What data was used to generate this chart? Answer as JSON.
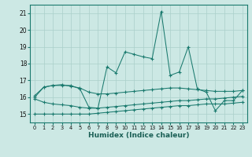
{
  "xlabel": "Humidex (Indice chaleur)",
  "bg_color": "#cce8e4",
  "grid_color": "#aacfca",
  "line_color": "#1a7a6e",
  "xlim": [
    -0.5,
    23.5
  ],
  "ylim": [
    14.5,
    21.5
  ],
  "xticks": [
    0,
    1,
    2,
    3,
    4,
    5,
    6,
    7,
    8,
    9,
    10,
    11,
    12,
    13,
    14,
    15,
    16,
    17,
    18,
    19,
    20,
    21,
    22,
    23
  ],
  "yticks": [
    15,
    16,
    17,
    18,
    19,
    20,
    21
  ],
  "line_main_x": [
    0,
    1,
    2,
    3,
    4,
    5,
    6,
    7,
    8,
    9,
    10,
    11,
    12,
    13,
    14,
    15,
    16,
    17,
    18,
    19,
    20,
    21,
    22,
    23
  ],
  "line_main_y": [
    16.0,
    16.6,
    16.7,
    16.7,
    16.7,
    16.5,
    15.4,
    15.35,
    17.8,
    17.45,
    18.7,
    18.55,
    18.4,
    18.3,
    21.1,
    17.3,
    17.5,
    19.0,
    16.5,
    16.3,
    15.2,
    15.8,
    15.8,
    16.4
  ],
  "line_flat1_x": [
    0,
    1,
    2,
    3,
    4,
    5,
    6,
    7,
    8,
    9,
    10,
    11,
    12,
    13,
    14,
    15,
    16,
    17,
    18,
    19,
    20,
    21,
    22,
    23
  ],
  "line_flat1_y": [
    15.9,
    15.7,
    15.6,
    15.55,
    15.5,
    15.4,
    15.35,
    15.35,
    15.4,
    15.45,
    15.5,
    15.55,
    15.6,
    15.65,
    15.7,
    15.75,
    15.8,
    15.8,
    15.85,
    15.9,
    15.9,
    15.95,
    16.0,
    16.05
  ],
  "line_flat2_x": [
    0,
    1,
    2,
    3,
    4,
    5,
    6,
    7,
    8,
    9,
    10,
    11,
    12,
    13,
    14,
    15,
    16,
    17,
    18,
    19,
    20,
    21,
    22,
    23
  ],
  "line_flat2_y": [
    15.0,
    15.0,
    15.0,
    15.0,
    15.0,
    15.0,
    15.0,
    15.05,
    15.1,
    15.15,
    15.2,
    15.25,
    15.3,
    15.35,
    15.4,
    15.45,
    15.5,
    15.5,
    15.55,
    15.6,
    15.6,
    15.6,
    15.65,
    15.7
  ],
  "line_upper_x": [
    0,
    1,
    2,
    3,
    4,
    5,
    6,
    7,
    8,
    9,
    10,
    11,
    12,
    13,
    14,
    15,
    16,
    17,
    18,
    19,
    20,
    21,
    22,
    23
  ],
  "line_upper_y": [
    16.1,
    16.6,
    16.7,
    16.75,
    16.65,
    16.55,
    16.3,
    16.2,
    16.2,
    16.25,
    16.3,
    16.35,
    16.4,
    16.45,
    16.5,
    16.55,
    16.55,
    16.5,
    16.45,
    16.4,
    16.35,
    16.35,
    16.35,
    16.4
  ],
  "marker_size": 3.0
}
